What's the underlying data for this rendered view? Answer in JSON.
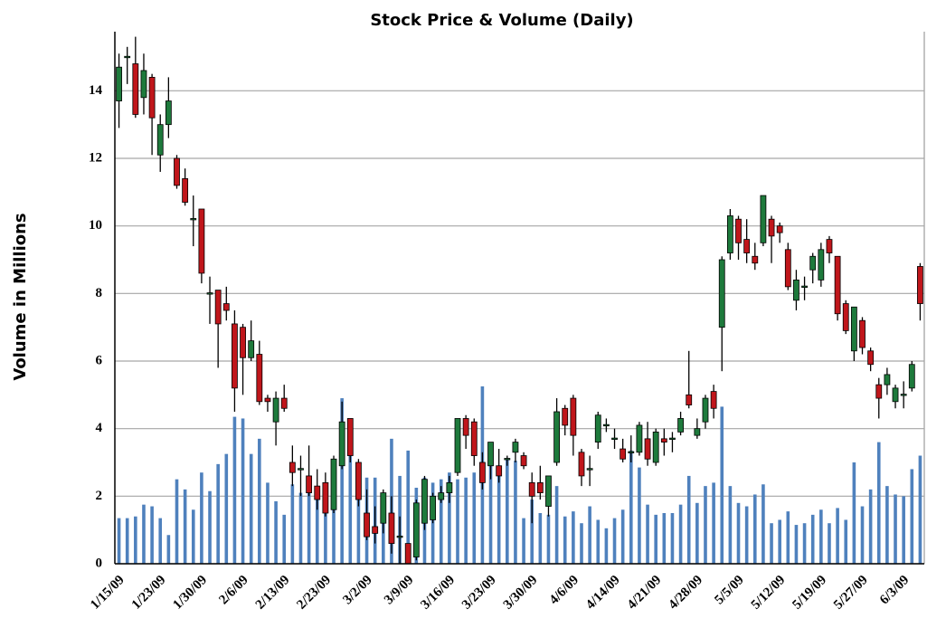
{
  "chart_data": {
    "type": "candlestick",
    "title": "Stock Price & Volume (Daily)",
    "y_label": "Volume in Millions",
    "categories": [
      "1/15/09",
      null,
      null,
      null,
      null,
      "1/23/09",
      null,
      null,
      null,
      null,
      "1/30/09",
      null,
      null,
      null,
      null,
      "2/6/09",
      null,
      null,
      null,
      null,
      "2/13/09",
      null,
      null,
      null,
      null,
      "2/23/09",
      null,
      null,
      null,
      null,
      "3/2/09",
      null,
      null,
      null,
      null,
      "3/9/09",
      null,
      null,
      null,
      null,
      "3/16/09",
      null,
      null,
      null,
      null,
      "3/23/09",
      null,
      null,
      null,
      null,
      "3/30/09",
      null,
      null,
      null,
      null,
      "4/6/09",
      null,
      null,
      null,
      null,
      "4/14/09",
      null,
      null,
      null,
      null,
      "4/21/09",
      null,
      null,
      null,
      null,
      "4/28/09",
      null,
      null,
      null,
      null,
      "5/5/09",
      null,
      null,
      null,
      null,
      "5/12/09",
      null,
      null,
      null,
      null,
      "5/19/09",
      null,
      null,
      null,
      null,
      "5/27/09",
      null,
      null,
      null,
      null,
      "6/3/09",
      null,
      null
    ],
    "open": [
      13.7,
      15.0,
      14.8,
      13.8,
      14.4,
      12.1,
      13.0,
      12.0,
      11.4,
      10.2,
      10.5,
      8.0,
      8.1,
      7.7,
      7.1,
      7.0,
      6.1,
      6.2,
      4.9,
      4.2,
      4.9,
      3.0,
      2.8,
      2.6,
      2.3,
      2.4,
      1.6,
      2.9,
      4.3,
      3.0,
      1.5,
      1.1,
      1.2,
      1.5,
      0.8,
      0.6,
      0.2,
      1.2,
      1.3,
      1.9,
      2.1,
      2.7,
      4.3,
      4.2,
      3.0,
      2.9,
      2.9,
      3.1,
      3.3,
      3.2,
      2.4,
      2.4,
      1.7,
      3.0,
      4.6,
      4.9,
      3.3,
      2.8,
      3.6,
      4.1,
      3.7,
      3.4,
      3.3,
      3.3,
      3.7,
      3.0,
      3.7,
      3.7,
      3.9,
      5.0,
      3.8,
      4.2,
      5.1,
      7.0,
      9.2,
      10.2,
      9.6,
      9.1,
      9.5,
      10.2,
      10.0,
      9.3,
      7.8,
      8.2,
      8.7,
      8.4,
      9.6,
      9.1,
      7.7,
      6.3,
      7.2,
      6.3,
      5.3,
      5.3,
      4.8,
      5.0,
      5.2,
      8.8
    ],
    "high": [
      15.1,
      15.3,
      15.6,
      15.1,
      14.5,
      13.3,
      14.4,
      12.1,
      11.7,
      10.9,
      10.5,
      8.5,
      8.1,
      8.2,
      7.5,
      7.1,
      7.2,
      6.6,
      5.0,
      5.1,
      5.3,
      3.5,
      3.2,
      3.5,
      2.8,
      2.7,
      3.2,
      4.8,
      4.3,
      3.1,
      2.2,
      1.7,
      2.2,
      2.0,
      1.4,
      0.6,
      1.9,
      2.6,
      2.1,
      2.3,
      2.6,
      4.3,
      4.4,
      4.3,
      3.3,
      3.6,
      3.4,
      3.2,
      3.7,
      3.3,
      2.7,
      2.9,
      2.6,
      4.9,
      4.7,
      5.0,
      3.4,
      3.2,
      4.5,
      4.3,
      4.0,
      3.7,
      3.8,
      4.2,
      4.2,
      4.0,
      4.0,
      3.9,
      4.5,
      6.3,
      4.3,
      5.0,
      5.3,
      9.1,
      10.5,
      10.3,
      10.2,
      9.5,
      10.9,
      10.3,
      10.1,
      9.5,
      8.7,
      8.5,
      9.2,
      9.5,
      9.7,
      9.1,
      7.8,
      7.6,
      7.3,
      6.4,
      5.5,
      5.8,
      5.3,
      5.4,
      6.0,
      8.9
    ],
    "low": [
      12.9,
      14.2,
      13.2,
      13.3,
      12.1,
      11.6,
      12.6,
      11.1,
      10.6,
      9.4,
      8.3,
      7.1,
      5.8,
      7.2,
      4.5,
      5.0,
      6.0,
      4.7,
      4.5,
      3.5,
      4.5,
      2.3,
      2.0,
      2.0,
      1.6,
      1.4,
      1.5,
      2.8,
      3.0,
      1.7,
      0.7,
      0.6,
      0.9,
      0.3,
      0.0,
      0.0,
      0.1,
      1.0,
      1.2,
      1.8,
      1.8,
      2.6,
      3.4,
      2.9,
      2.2,
      2.5,
      2.4,
      2.9,
      3.0,
      2.8,
      1.2,
      1.9,
      1.4,
      2.9,
      3.8,
      3.2,
      2.3,
      2.3,
      3.4,
      3.9,
      3.4,
      3.0,
      3.0,
      3.2,
      2.9,
      2.9,
      3.2,
      3.3,
      3.8,
      4.6,
      3.7,
      4.0,
      4.3,
      5.7,
      9.0,
      9.0,
      8.9,
      8.7,
      9.4,
      8.9,
      9.5,
      8.1,
      7.5,
      7.8,
      8.3,
      8.2,
      8.9,
      7.2,
      6.8,
      6.0,
      6.2,
      5.7,
      4.3,
      5.0,
      4.6,
      4.6,
      5.1,
      7.2
    ],
    "close": [
      14.7,
      15.0,
      13.3,
      14.6,
      13.2,
      13.0,
      13.7,
      11.2,
      10.7,
      10.2,
      8.6,
      8.0,
      7.1,
      7.5,
      5.2,
      6.1,
      6.6,
      4.8,
      4.8,
      4.9,
      4.6,
      2.7,
      2.8,
      2.1,
      1.9,
      1.5,
      3.1,
      4.2,
      3.2,
      1.9,
      0.8,
      0.9,
      2.1,
      0.6,
      0.8,
      0.0,
      1.8,
      2.5,
      2.0,
      2.1,
      2.4,
      4.3,
      3.8,
      3.2,
      2.4,
      3.6,
      2.6,
      3.1,
      3.6,
      2.9,
      2.0,
      2.1,
      2.6,
      4.5,
      4.1,
      3.8,
      2.6,
      2.8,
      4.4,
      4.1,
      3.7,
      3.1,
      3.3,
      4.1,
      3.1,
      3.9,
      3.6,
      3.7,
      4.3,
      4.7,
      4.0,
      4.9,
      4.6,
      9.0,
      10.3,
      9.5,
      9.2,
      8.9,
      10.9,
      9.7,
      9.8,
      8.2,
      8.4,
      8.2,
      9.1,
      9.3,
      9.2,
      7.4,
      6.9,
      7.6,
      6.4,
      5.9,
      4.9,
      5.6,
      5.2,
      5.0,
      5.9,
      7.7
    ],
    "volume": [
      1.35,
      1.35,
      1.4,
      1.75,
      1.7,
      1.35,
      0.85,
      2.5,
      2.2,
      1.6,
      2.7,
      2.15,
      2.95,
      3.25,
      4.35,
      4.3,
      3.25,
      3.7,
      2.4,
      1.85,
      1.45,
      2.35,
      2.1,
      2.35,
      2.3,
      2.0,
      3.0,
      4.9,
      3.2,
      2.4,
      2.55,
      2.55,
      1.6,
      3.7,
      2.6,
      3.35,
      2.25,
      2.55,
      2.4,
      2.5,
      2.7,
      2.5,
      2.55,
      2.7,
      5.25,
      3.3,
      2.9,
      3.1,
      3.05,
      1.35,
      1.9,
      1.5,
      1.45,
      2.3,
      1.4,
      1.55,
      1.2,
      1.7,
      1.3,
      1.05,
      1.35,
      1.6,
      3.35,
      2.85,
      1.75,
      1.45,
      1.5,
      1.5,
      1.75,
      2.6,
      1.8,
      2.3,
      2.4,
      4.65,
      2.3,
      1.8,
      1.7,
      2.05,
      2.35,
      1.2,
      1.3,
      1.55,
      1.15,
      1.2,
      1.45,
      1.6,
      1.2,
      1.65,
      1.3,
      3.0,
      1.7,
      2.2,
      3.6,
      2.3,
      2.05,
      2.0,
      2.8,
      3.2
    ],
    "up_color": "#1e7a3c",
    "down_color": "#c0161b",
    "volume_color": "#4f81bd",
    "ylim": [
      0,
      15.75
    ],
    "yticks": [
      0,
      2,
      4,
      6,
      8,
      10,
      12,
      14
    ],
    "grid": true
  }
}
